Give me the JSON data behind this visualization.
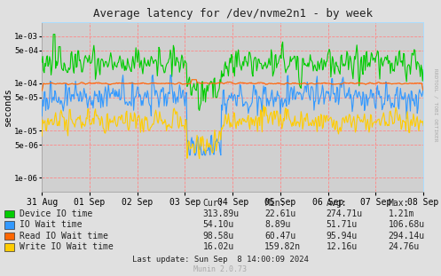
{
  "title": "Average latency for /dev/nvme2n1 - by week",
  "ylabel": "seconds",
  "xlabel_ticks": [
    "31 Aug",
    "01 Sep",
    "02 Sep",
    "03 Sep",
    "04 Sep",
    "05 Sep",
    "06 Sep",
    "07 Sep",
    "08 Sep"
  ],
  "bg_color": "#e0e0e0",
  "plot_bg_color": "#d0d0d0",
  "grid_color_h": "#ff8888",
  "grid_color_v": "#ff8888",
  "series": {
    "device_io": {
      "color": "#00cc00",
      "label": "Device IO time",
      "cur": "313.89u",
      "min": "22.61u",
      "avg": "274.71u",
      "max": "1.21m"
    },
    "io_wait": {
      "color": "#3399ff",
      "label": "IO Wait time",
      "cur": "54.10u",
      "min": "8.89u",
      "avg": "51.71u",
      "max": "106.68u"
    },
    "read_wait": {
      "color": "#ff6600",
      "label": "Read IO Wait time",
      "cur": "98.58u",
      "min": "60.47u",
      "avg": "95.94u",
      "max": "294.14u"
    },
    "write_wait": {
      "color": "#ffcc00",
      "label": "Write IO Wait time",
      "cur": "16.02u",
      "min": "159.82n",
      "avg": "12.16u",
      "max": "24.76u"
    }
  },
  "footer": "Last update: Sun Sep  8 14:00:09 2024",
  "munin_version": "Munin 2.0.73",
  "rrdtool_label": "RRDTOOL / TOBI OETIKER",
  "yticks": [
    1e-06,
    5e-06,
    1e-05,
    5e-05,
    0.0001,
    0.0005,
    0.001
  ],
  "ytick_labels": [
    "1e-06",
    "5e-06",
    "1e-05",
    "5e-05",
    "1e-04",
    "5e-04",
    "1e-03"
  ],
  "ylim": [
    5e-07,
    0.002
  ],
  "n_points": 500,
  "seed": 42
}
